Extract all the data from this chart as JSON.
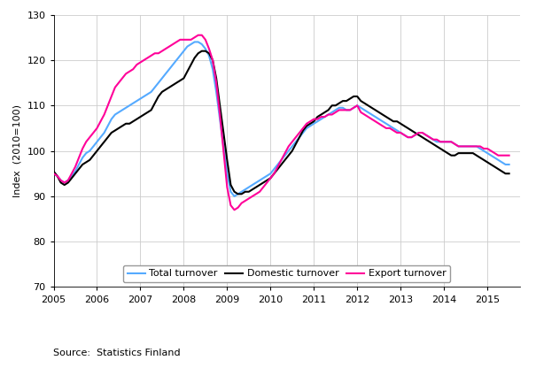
{
  "title": "",
  "ylabel": "Index  (2010=100)",
  "source_text": "Source:  Statistics Finland",
  "xlim": [
    2005.0,
    2015.75
  ],
  "ylim": [
    70,
    130
  ],
  "yticks": [
    70,
    80,
    90,
    100,
    110,
    120,
    130
  ],
  "xtick_labels": [
    "2005",
    "2006",
    "2007",
    "2008",
    "2009",
    "2010",
    "2011",
    "2012",
    "2013",
    "2014",
    "2015"
  ],
  "xtick_positions": [
    2005,
    2006,
    2007,
    2008,
    2009,
    2010,
    2011,
    2012,
    2013,
    2014,
    2015
  ],
  "legend_labels": [
    "Total turnover",
    "Domestic turnover",
    "Export turnover"
  ],
  "line_colors": {
    "total": "#55AAFF",
    "domestic": "#000000",
    "export": "#FF0099"
  },
  "line_width": 1.5,
  "total_x": [
    2005.0,
    2005.083,
    2005.167,
    2005.25,
    2005.333,
    2005.417,
    2005.5,
    2005.583,
    2005.667,
    2005.75,
    2005.833,
    2005.917,
    2006.0,
    2006.083,
    2006.167,
    2006.25,
    2006.333,
    2006.417,
    2006.5,
    2006.583,
    2006.667,
    2006.75,
    2006.833,
    2006.917,
    2007.0,
    2007.083,
    2007.167,
    2007.25,
    2007.333,
    2007.417,
    2007.5,
    2007.583,
    2007.667,
    2007.75,
    2007.833,
    2007.917,
    2008.0,
    2008.083,
    2008.167,
    2008.25,
    2008.333,
    2008.417,
    2008.5,
    2008.583,
    2008.667,
    2008.75,
    2008.833,
    2008.917,
    2009.0,
    2009.083,
    2009.167,
    2009.25,
    2009.333,
    2009.417,
    2009.5,
    2009.583,
    2009.667,
    2009.75,
    2009.833,
    2009.917,
    2010.0,
    2010.083,
    2010.167,
    2010.25,
    2010.333,
    2010.417,
    2010.5,
    2010.583,
    2010.667,
    2010.75,
    2010.833,
    2010.917,
    2011.0,
    2011.083,
    2011.167,
    2011.25,
    2011.333,
    2011.417,
    2011.5,
    2011.583,
    2011.667,
    2011.75,
    2011.833,
    2011.917,
    2012.0,
    2012.083,
    2012.167,
    2012.25,
    2012.333,
    2012.417,
    2012.5,
    2012.583,
    2012.667,
    2012.75,
    2012.833,
    2012.917,
    2013.0,
    2013.083,
    2013.167,
    2013.25,
    2013.333,
    2013.417,
    2013.5,
    2013.583,
    2013.667,
    2013.75,
    2013.833,
    2013.917,
    2014.0,
    2014.083,
    2014.167,
    2014.25,
    2014.333,
    2014.417,
    2014.5,
    2014.583,
    2014.667,
    2014.75,
    2014.833,
    2014.917,
    2015.0,
    2015.083,
    2015.167,
    2015.25,
    2015.333,
    2015.417,
    2015.5
  ],
  "total_y": [
    95,
    94.5,
    93.5,
    93,
    93.5,
    94.5,
    95.5,
    97,
    98.5,
    99.5,
    100,
    101,
    102,
    103,
    104,
    105.5,
    107,
    108,
    108.5,
    109,
    109.5,
    110,
    110.5,
    111,
    111.5,
    112,
    112.5,
    113,
    114,
    115,
    116,
    117,
    118,
    119,
    120,
    121,
    122,
    123,
    123.5,
    124,
    124,
    123.5,
    122.5,
    121,
    118,
    113,
    107,
    101,
    95,
    91,
    90,
    90.5,
    91,
    91.5,
    92,
    92.5,
    93,
    93.5,
    94,
    94.5,
    95,
    96,
    97,
    98,
    99,
    100,
    101,
    102,
    103,
    104,
    105,
    105.5,
    106,
    106.5,
    107,
    107.5,
    108,
    108.5,
    109,
    109.5,
    109.5,
    109,
    109,
    109.5,
    110,
    109.5,
    109,
    108.5,
    108,
    107.5,
    107,
    106.5,
    106,
    105.5,
    105,
    104.5,
    104,
    103.5,
    103,
    103,
    103.5,
    104,
    104,
    103.5,
    103,
    102.5,
    102,
    102,
    102,
    102,
    102,
    101.5,
    101,
    101,
    101,
    101,
    101,
    101,
    100.5,
    100,
    99.5,
    99,
    98.5,
    98,
    97.5,
    97,
    97
  ],
  "domestic_y": [
    95.5,
    94.5,
    93,
    92.5,
    93,
    94,
    95,
    96,
    97,
    97.5,
    98,
    99,
    100,
    101,
    102,
    103,
    104,
    104.5,
    105,
    105.5,
    106,
    106,
    106.5,
    107,
    107.5,
    108,
    108.5,
    109,
    110.5,
    112,
    113,
    113.5,
    114,
    114.5,
    115,
    115.5,
    116,
    117.5,
    119,
    120.5,
    121.5,
    122,
    122,
    121.5,
    120,
    116,
    110,
    104,
    98,
    92.5,
    91,
    90.5,
    90.5,
    91,
    91,
    91.5,
    92,
    92.5,
    93,
    93.5,
    94,
    95,
    96,
    97,
    98,
    99,
    100,
    101.5,
    103,
    104.5,
    105.5,
    106,
    106.5,
    107.5,
    108,
    108.5,
    109,
    110,
    110,
    110.5,
    111,
    111,
    111.5,
    112,
    112,
    111,
    110.5,
    110,
    109.5,
    109,
    108.5,
    108,
    107.5,
    107,
    106.5,
    106.5,
    106,
    105.5,
    105,
    104.5,
    104,
    103.5,
    103,
    102.5,
    102,
    101.5,
    101,
    100.5,
    100,
    99.5,
    99,
    99,
    99.5,
    99.5,
    99.5,
    99.5,
    99.5,
    99,
    98.5,
    98,
    97.5,
    97,
    96.5,
    96,
    95.5,
    95,
    95
  ],
  "export_y": [
    95,
    94.5,
    93.5,
    93,
    93.5,
    95,
    96.5,
    98.5,
    100.5,
    102,
    103,
    104,
    105,
    106.5,
    108,
    110,
    112,
    114,
    115,
    116,
    117,
    117.5,
    118,
    119,
    119.5,
    120,
    120.5,
    121,
    121.5,
    121.5,
    122,
    122.5,
    123,
    123.5,
    124,
    124.5,
    124.5,
    124.5,
    124.5,
    125,
    125.5,
    125.5,
    124.5,
    122.5,
    120,
    115,
    108,
    100,
    92,
    88,
    87,
    87.5,
    88.5,
    89,
    89.5,
    90,
    90.5,
    91,
    92,
    93,
    94,
    95,
    96.5,
    98,
    99.5,
    101,
    102,
    103,
    104,
    105,
    106,
    106.5,
    107,
    107,
    107.5,
    107.5,
    108,
    108,
    108.5,
    109,
    109,
    109,
    109,
    109.5,
    110,
    108.5,
    108,
    107.5,
    107,
    106.5,
    106,
    105.5,
    105,
    105,
    104.5,
    104,
    104,
    103.5,
    103,
    103,
    103.5,
    104,
    104,
    103.5,
    103,
    102.5,
    102.5,
    102,
    102,
    102,
    102,
    101.5,
    101,
    101,
    101,
    101,
    101,
    101,
    101,
    100.5,
    100.5,
    100,
    99.5,
    99,
    99,
    99,
    99
  ],
  "grid_color": "#CCCCCC",
  "background_color": "#FFFFFF",
  "font_size_ticks": 8,
  "font_size_ylabel": 8,
  "font_size_legend": 8,
  "font_size_source": 8
}
